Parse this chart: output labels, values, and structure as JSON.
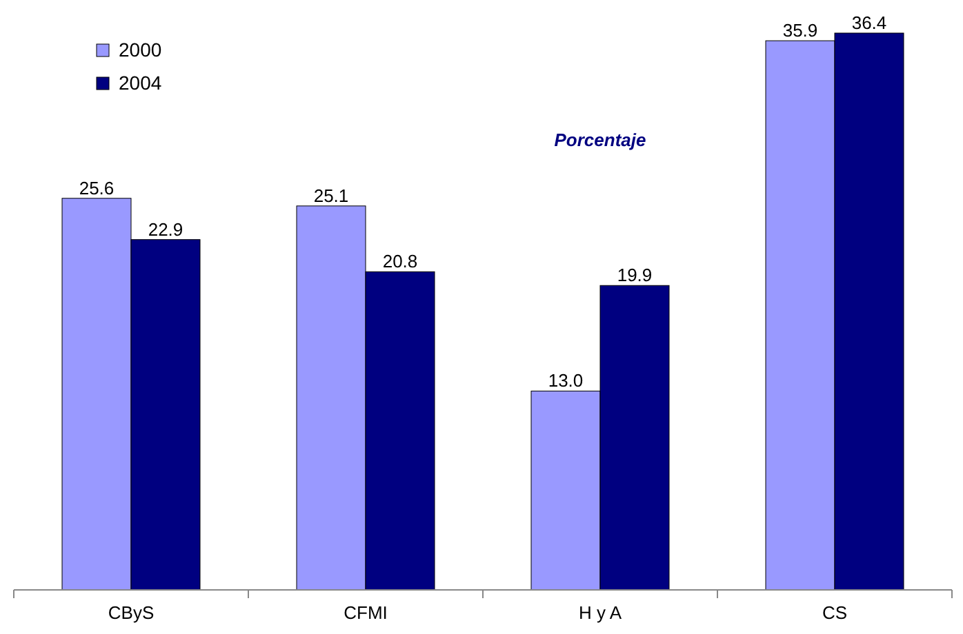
{
  "chart_data": {
    "type": "bar",
    "categories": [
      "CByS",
      "CFMI",
      "H y A",
      "CS"
    ],
    "series": [
      {
        "name": "2000",
        "color": "#9999ff",
        "values": [
          25.6,
          25.1,
          13.0,
          35.9
        ],
        "value_labels": [
          "25.6",
          "25.1",
          "13.0",
          "35.9"
        ]
      },
      {
        "name": "2004",
        "color": "#000080",
        "values": [
          22.9,
          20.8,
          19.9,
          36.4
        ],
        "value_labels": [
          "22.9",
          "20.8",
          "19.9",
          "36.4"
        ]
      }
    ],
    "legend": "top left",
    "annotations": [
      "Porcentaje"
    ]
  }
}
